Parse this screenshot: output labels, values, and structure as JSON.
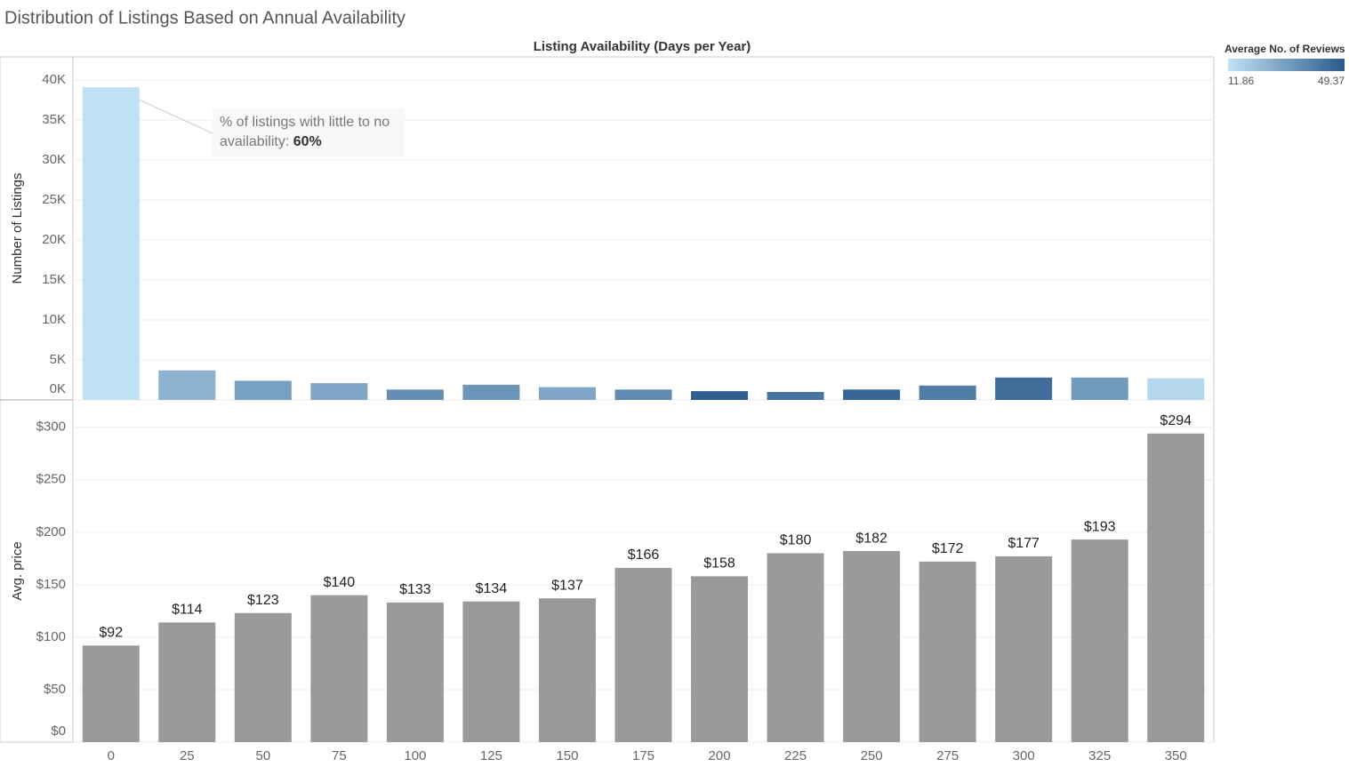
{
  "title": "Distribution of Listings Based on Annual Availability",
  "xlabel": "Listing Availability (Days per Year)",
  "categories": [
    "0",
    "25",
    "50",
    "75",
    "100",
    "125",
    "150",
    "175",
    "200",
    "225",
    "250",
    "275",
    "300",
    "325",
    "350"
  ],
  "legend": {
    "title": "Average No. of Reviews",
    "range": [
      11.86,
      49.37
    ],
    "colors": [
      "#c0e2f4",
      "#2b5a8b"
    ]
  },
  "annotation": {
    "text": "% of listings with little to no availability:",
    "value": "60%"
  },
  "chart_data": [
    {
      "type": "bar",
      "ylabel": "Number of Listings",
      "values": [
        39100,
        3700,
        2400,
        2100,
        1300,
        1900,
        1600,
        1300,
        1100,
        1000,
        1300,
        1800,
        2800,
        2800,
        2700
      ],
      "color_values": [
        12,
        25,
        30,
        28,
        35,
        33,
        28,
        36,
        48,
        42,
        46,
        40,
        44,
        32,
        15
      ],
      "ylim": [
        0,
        42900
      ],
      "yticks": [
        {
          "value": 0,
          "label": "0K"
        },
        {
          "value": 5000,
          "label": "5K"
        },
        {
          "value": 10000,
          "label": "10K"
        },
        {
          "value": 15000,
          "label": "15K"
        },
        {
          "value": 20000,
          "label": "20K"
        },
        {
          "value": 25000,
          "label": "25K"
        },
        {
          "value": 30000,
          "label": "30K"
        },
        {
          "value": 35000,
          "label": "35K"
        },
        {
          "value": 40000,
          "label": "40K"
        }
      ],
      "grid": true
    },
    {
      "type": "bar",
      "ylabel": "Avg. price",
      "color": "#9a9a9a",
      "values": [
        92,
        114,
        123,
        140,
        133,
        134,
        137,
        166,
        158,
        180,
        182,
        172,
        177,
        193,
        294
      ],
      "value_labels": [
        "$92",
        "$114",
        "$123",
        "$140",
        "$133",
        "$134",
        "$137",
        "$166",
        "$158",
        "$180",
        "$182",
        "$172",
        "$177",
        "$193",
        "$294"
      ],
      "ylim": [
        0,
        326
      ],
      "yticks": [
        {
          "value": 0,
          "label": "$0"
        },
        {
          "value": 50,
          "label": "$50"
        },
        {
          "value": 100,
          "label": "$100"
        },
        {
          "value": 150,
          "label": "$150"
        },
        {
          "value": 200,
          "label": "$200"
        },
        {
          "value": 250,
          "label": "$250"
        },
        {
          "value": 300,
          "label": "$300"
        }
      ],
      "grid": true
    }
  ]
}
